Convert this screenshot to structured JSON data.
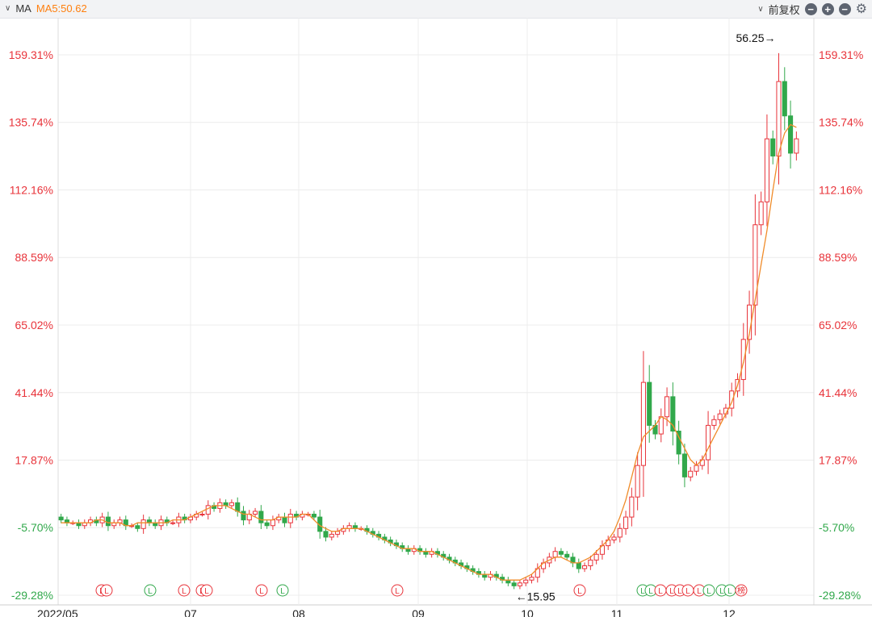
{
  "toolbar": {
    "indicator": "MA",
    "ma_label": "MA5:50.62",
    "adjust_label": "前复权",
    "zoom_out_icon": "minus-circle-icon",
    "zoom_in_icon": "plus-circle-icon",
    "settings_icon": "gear-icon"
  },
  "colors": {
    "up": "#e8333a",
    "down": "#31a84b",
    "ma": "#f08c2a",
    "grid": "#ececec"
  },
  "chart_data": {
    "type": "candlestick",
    "x_labels": [
      "2022/05",
      "07",
      "08",
      "09",
      "10",
      "11",
      "12"
    ],
    "y_ticks_pct": [
      "159.31%",
      "135.74%",
      "112.16%",
      "88.59%",
      "65.02%",
      "41.44%",
      "17.87%",
      "-5.70%",
      "-29.28%"
    ],
    "y_tick_values": [
      159.31,
      135.74,
      112.16,
      88.59,
      65.02,
      41.44,
      17.87,
      -5.7,
      -29.28
    ],
    "annotations": [
      {
        "text": "56.25",
        "marker": "high"
      },
      {
        "text": "15.95",
        "marker": "low"
      }
    ],
    "close_pct": [
      -3,
      -4,
      -4,
      -5,
      -4,
      -3,
      -4,
      -2,
      -5,
      -4,
      -3,
      -5,
      -5,
      -6,
      -3,
      -4,
      -5,
      -3,
      -4,
      -4,
      -2,
      -3,
      -2,
      -1,
      -1,
      2,
      1,
      3,
      2,
      3,
      0,
      -3,
      -1,
      0,
      -4,
      -5,
      -3,
      -2,
      -4,
      -1,
      -2,
      -1,
      -1,
      -2,
      -7,
      -9,
      -8,
      -7,
      -6,
      -5,
      -6,
      -6,
      -7,
      -8,
      -9,
      -10,
      -11,
      -12,
      -13,
      -14,
      -13,
      -14,
      -15,
      -14,
      -15,
      -16,
      -17,
      -18,
      -19,
      -20,
      -21,
      -22,
      -23,
      -22,
      -23,
      -24,
      -25,
      -26,
      -25,
      -24,
      -23,
      -20,
      -18,
      -16,
      -14,
      -15,
      -16,
      -18,
      -20,
      -19,
      -17,
      -15,
      -12,
      -10,
      -9,
      -6,
      -2,
      5,
      16,
      45,
      30,
      27,
      33,
      40,
      28,
      20,
      12,
      14,
      16,
      18,
      30,
      32,
      34,
      36,
      42,
      46,
      60,
      72,
      100,
      108,
      130,
      124,
      150,
      138,
      125,
      130
    ],
    "ma5_pct": [
      -4,
      -4,
      -4,
      -4,
      -4,
      -4,
      -3,
      -3,
      -4,
      -4,
      -4,
      -5,
      -5,
      -4,
      -4,
      -4,
      -4,
      -4,
      -4,
      -3,
      -3,
      -3,
      -2,
      -1,
      0,
      1,
      2,
      2,
      2,
      1,
      0,
      -1,
      -1,
      -2,
      -3,
      -3,
      -3,
      -2,
      -2,
      -2,
      -2,
      -1,
      -1,
      -3,
      -5,
      -6,
      -7,
      -7,
      -6,
      -6,
      -6,
      -6,
      -7,
      -8,
      -9,
      -10,
      -11,
      -12,
      -13,
      -13,
      -13,
      -14,
      -14,
      -14,
      -15,
      -16,
      -17,
      -18,
      -19,
      -20,
      -21,
      -22,
      -22,
      -22,
      -23,
      -24,
      -24,
      -24,
      -24,
      -23,
      -22,
      -20,
      -18,
      -17,
      -16,
      -16,
      -17,
      -18,
      -18,
      -17,
      -16,
      -14,
      -12,
      -10,
      -7,
      -2,
      4,
      12,
      20,
      26,
      28,
      30,
      33,
      32,
      30,
      26,
      22,
      18,
      16,
      18,
      22,
      26,
      30,
      34,
      38,
      44,
      52,
      62,
      74,
      86,
      98,
      112,
      125,
      132,
      135,
      134
    ]
  },
  "markers": [
    {
      "label": "L",
      "kind": "up"
    },
    {
      "label": "L",
      "kind": "up"
    },
    {
      "label": "L",
      "kind": "down"
    },
    {
      "label": "L",
      "kind": "up"
    },
    {
      "label": "L",
      "kind": "up"
    },
    {
      "label": "L",
      "kind": "up"
    },
    {
      "label": "L",
      "kind": "up"
    },
    {
      "label": "L",
      "kind": "down"
    },
    {
      "label": "L",
      "kind": "up"
    },
    {
      "label": "L",
      "kind": "up"
    },
    {
      "label": "L",
      "kind": "down"
    },
    {
      "label": "L",
      "kind": "down"
    },
    {
      "label": "L",
      "kind": "up"
    },
    {
      "label": "L",
      "kind": "up"
    },
    {
      "label": "L",
      "kind": "up"
    },
    {
      "label": "L",
      "kind": "up"
    },
    {
      "label": "L",
      "kind": "up"
    },
    {
      "label": "L",
      "kind": "down"
    },
    {
      "label": "L",
      "kind": "down"
    },
    {
      "label": "L",
      "kind": "down"
    },
    {
      "label": "榜",
      "kind": "up"
    }
  ]
}
